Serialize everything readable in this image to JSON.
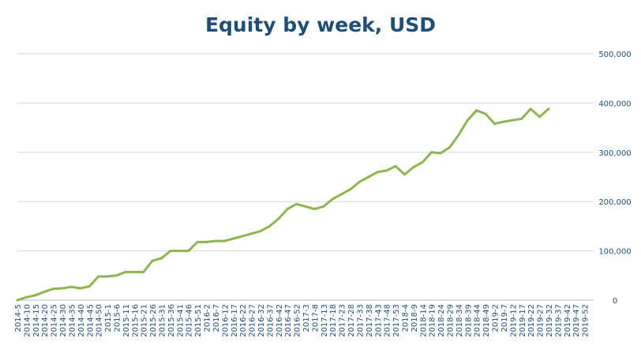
{
  "chart_data": {
    "type": "line",
    "title": "Equity by week, USD",
    "xlabel": "",
    "ylabel": "",
    "ylim": [
      0,
      500000
    ],
    "yticks": [
      "0",
      "100,000",
      "200,000",
      "300,000",
      "400,000",
      "500,000"
    ],
    "y_axis_position": "right",
    "grid": true,
    "legend": "none",
    "line_color": "#8db650",
    "text_color": "#1f4e79",
    "categories": [
      "2014-5",
      "2014-10",
      "2014-15",
      "2014-20",
      "2014-25",
      "2014-30",
      "2014-35",
      "2014-40",
      "2014-45",
      "2014-50",
      "2015-1",
      "2015-6",
      "2015-11",
      "2015-16",
      "2015-21",
      "2015-26",
      "2015-31",
      "2015-36",
      "2015-41",
      "2015-46",
      "2015-51",
      "2016-2",
      "2016-7",
      "2016-12",
      "2016-17",
      "2016-22",
      "2016-27",
      "2016-32",
      "2016-37",
      "2016-42",
      "2016-47",
      "2016-52",
      "2017-3",
      "2017-8",
      "2017-13",
      "2017-18",
      "2017-23",
      "2017-28",
      "2017-33",
      "2017-38",
      "2017-43",
      "2017-48",
      "2017-53",
      "2018-4",
      "2018-9",
      "2018-14",
      "2018-19",
      "2018-24",
      "2018-29",
      "2018-34",
      "2018-39",
      "2018-44",
      "2018-49",
      "2019-2",
      "2019-7",
      "2019-12",
      "2019-17",
      "2019-22",
      "2019-27",
      "2019-32",
      "2019-37",
      "2019-42",
      "2019-47",
      "2019-52"
    ],
    "series": [
      {
        "values": [
          0,
          6000,
          10000,
          17000,
          23000,
          24000,
          27000,
          24000,
          28000,
          48000,
          48000,
          50000,
          57000,
          57000,
          57000,
          80000,
          85000,
          100000,
          100000,
          100000,
          118000,
          118000,
          120000,
          120000,
          125000,
          130000,
          135000,
          140000,
          150000,
          165000,
          185000,
          195000,
          190000,
          185000,
          190000,
          205000,
          215000,
          225000,
          240000,
          250000,
          260000,
          263000,
          272000,
          255000,
          270000,
          280000,
          300000,
          298000,
          310000,
          335000,
          365000,
          385000,
          378000,
          358000,
          362000,
          365000,
          368000,
          388000,
          372000,
          388000,
          null,
          null,
          null,
          null
        ]
      }
    ]
  }
}
